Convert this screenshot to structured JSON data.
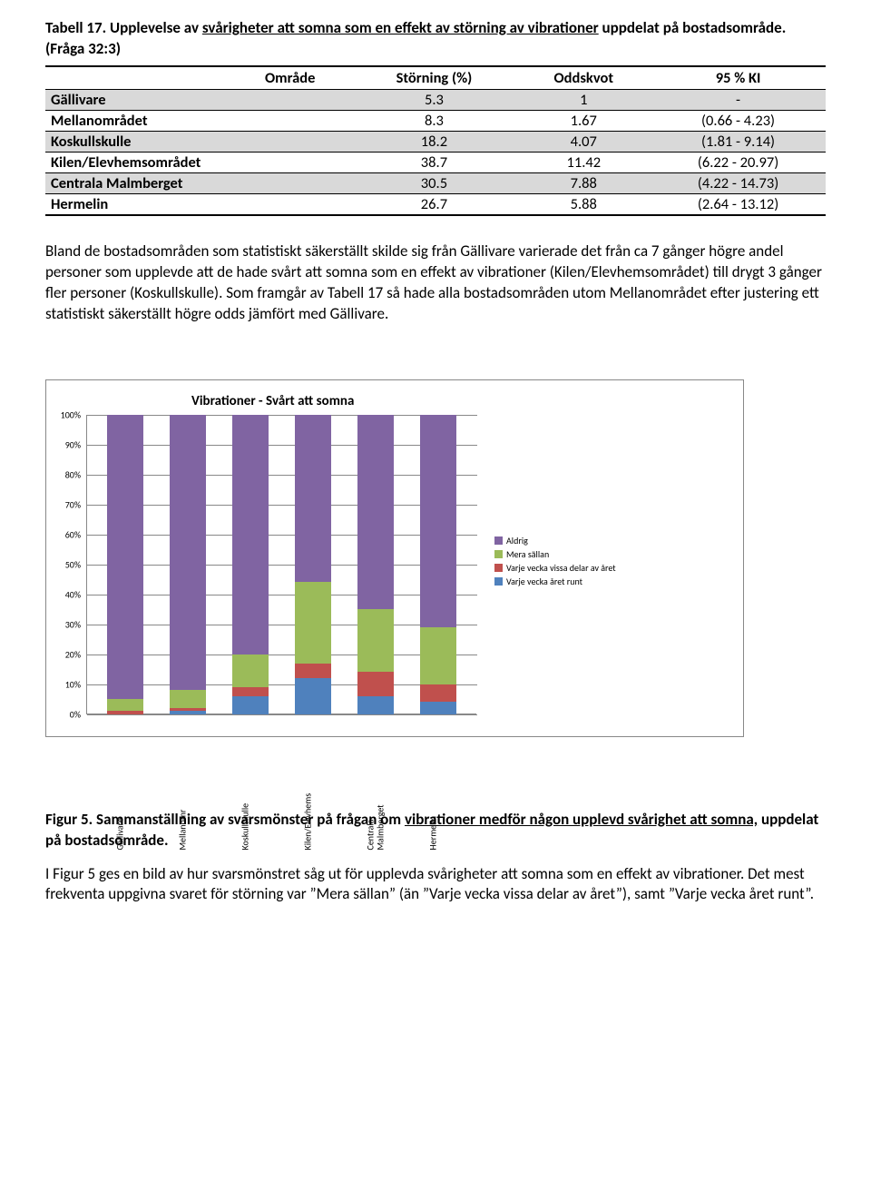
{
  "title": {
    "pre": "Tabell 17. Upplevelse av ",
    "u1": "svårigheter att somna som en effekt av störning av vibrationer",
    "post1": " uppdelat på bostadsområde. (Fråga 32:3)"
  },
  "table": {
    "headers": [
      "Område",
      "Störning (%)",
      "Oddskvot",
      "95 % KI"
    ],
    "rows": [
      {
        "shaded": true,
        "area": "Gällivare",
        "st": "5.3",
        "or": "1",
        "ci": "-"
      },
      {
        "shaded": false,
        "area": "Mellanområdet",
        "st": "8.3",
        "or": "1.67",
        "ci": "(0.66 - 4.23)"
      },
      {
        "shaded": true,
        "area": "Koskullskulle",
        "st": "18.2",
        "or": "4.07",
        "ci": "(1.81 - 9.14)"
      },
      {
        "shaded": false,
        "area": "Kilen/Elevhemsområdet",
        "st": "38.7",
        "or": "11.42",
        "ci": "(6.22 - 20.97)"
      },
      {
        "shaded": true,
        "area": "Centrala Malmberget",
        "st": "30.5",
        "or": "7.88",
        "ci": "(4.22 - 14.73)"
      },
      {
        "shaded": false,
        "area": "Hermelin",
        "st": "26.7",
        "or": "5.88",
        "ci": "(2.64 - 13.12)"
      }
    ]
  },
  "paragraph1": "Bland de bostadsområden som statistiskt säkerställt skilde sig från Gällivare varierade det från ca 7 gånger högre andel personer som upplevde att de hade svårt att somna som en effekt av vibrationer (Kilen/Elevhemsområdet) till drygt 3 gånger fler personer (Koskullskulle). Som framgår av Tabell 17 så hade alla bostadsområden utom Mellanområdet efter justering ett statistiskt säkerställt högre odds jämfört med Gällivare.",
  "chart": {
    "title": "Vibrationer - Svårt att somna",
    "type": "stacked-bar",
    "ylim": [
      0,
      100
    ],
    "ytick_step": 10,
    "yticks": [
      "0%",
      "10%",
      "20%",
      "30%",
      "40%",
      "50%",
      "60%",
      "70%",
      "80%",
      "90%",
      "100%"
    ],
    "colors": {
      "aldrig": "#8064a2",
      "mera": "#9bbb59",
      "vissa": "#c0504d",
      "runt": "#4f81bd",
      "grid": "#868686",
      "background": "#ffffff"
    },
    "legend": [
      {
        "key": "aldrig",
        "label": "Aldrig"
      },
      {
        "key": "mera",
        "label": "Mera sällan"
      },
      {
        "key": "vissa",
        "label": "Varje vecka vissa delar av året"
      },
      {
        "key": "runt",
        "label": "Varje vecka året runt"
      }
    ],
    "categories": [
      {
        "label": "Gällivare",
        "runt": 0,
        "vissa": 1,
        "mera": 4,
        "aldrig": 95
      },
      {
        "label": "Mellanomr",
        "runt": 1,
        "vissa": 1,
        "mera": 6,
        "aldrig": 92
      },
      {
        "label": "Koskullskulle",
        "runt": 6,
        "vissa": 3,
        "mera": 11,
        "aldrig": 80
      },
      {
        "label": "Kilen/Elevhems",
        "runt": 12,
        "vissa": 5,
        "mera": 27,
        "aldrig": 56
      },
      {
        "label": "Centrala\nMalmberget",
        "runt": 6,
        "vissa": 8,
        "mera": 21,
        "aldrig": 65
      },
      {
        "label": "Hermelin",
        "runt": 4,
        "vissa": 6,
        "mera": 19,
        "aldrig": 71
      }
    ]
  },
  "figcaption": {
    "pre": "Figur 5. Sammanställning av svarsmönster på frågan om ",
    "u1": "vibrationer medför någon upplevd svårighet att somna,",
    "post": " uppdelat på bostadsområde."
  },
  "paragraph2": "I Figur 5 ges en bild av hur svarsmönstret såg ut för upplevda svårigheter att somna som en effekt av vibrationer. Det mest frekventa uppgivna svaret för störning var ”Mera sällan” (än ”Varje vecka vissa delar av året”), samt ”Varje vecka året runt”."
}
